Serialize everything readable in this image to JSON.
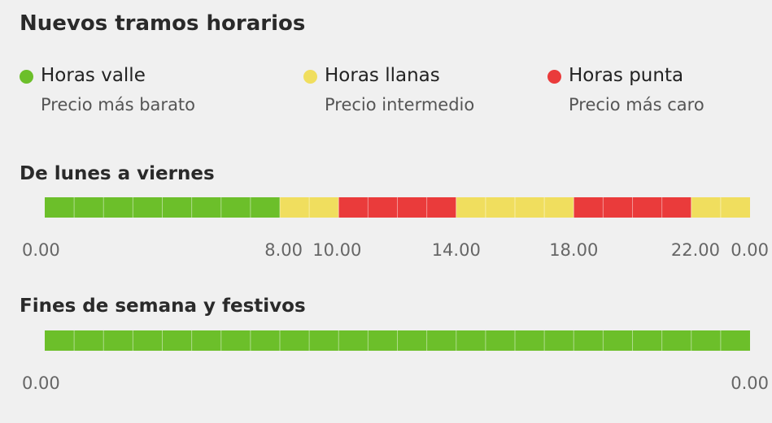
{
  "title": "Nuevos tramos horarios",
  "legend": [
    {
      "name": "Horas valle",
      "desc": "Precio más barato",
      "color": "#6cbf2a"
    },
    {
      "name": "Horas llanas",
      "desc": "Precio intermedio",
      "color": "#f0de5e"
    },
    {
      "name": "Horas punta",
      "desc": "Precio más caro",
      "color": "#ea3b3b"
    }
  ],
  "chart_data": [
    {
      "type": "bar",
      "title": "De lunes a viernes",
      "x_range": [
        0,
        24
      ],
      "segments": [
        {
          "start": 0,
          "end": 8,
          "category": "Horas valle"
        },
        {
          "start": 8,
          "end": 10,
          "category": "Horas llanas"
        },
        {
          "start": 10,
          "end": 14,
          "category": "Horas punta"
        },
        {
          "start": 14,
          "end": 18,
          "category": "Horas llanas"
        },
        {
          "start": 18,
          "end": 22,
          "category": "Horas punta"
        },
        {
          "start": 22,
          "end": 24,
          "category": "Horas llanas"
        }
      ],
      "tick_labels": [
        {
          "hour": 0,
          "label": "0.00"
        },
        {
          "hour": 8,
          "label": "8.00"
        },
        {
          "hour": 10,
          "label": "10.00"
        },
        {
          "hour": 14,
          "label": "14.00"
        },
        {
          "hour": 18,
          "label": "18.00"
        },
        {
          "hour": 22,
          "label": "22.00"
        },
        {
          "hour": 24,
          "label": "0.00"
        }
      ]
    },
    {
      "type": "bar",
      "title": "Fines de semana y festivos",
      "x_range": [
        0,
        24
      ],
      "segments": [
        {
          "start": 0,
          "end": 24,
          "category": "Horas valle"
        }
      ],
      "tick_labels": [
        {
          "hour": 0,
          "label": "0.00"
        },
        {
          "hour": 24,
          "label": "0.00"
        }
      ]
    }
  ]
}
